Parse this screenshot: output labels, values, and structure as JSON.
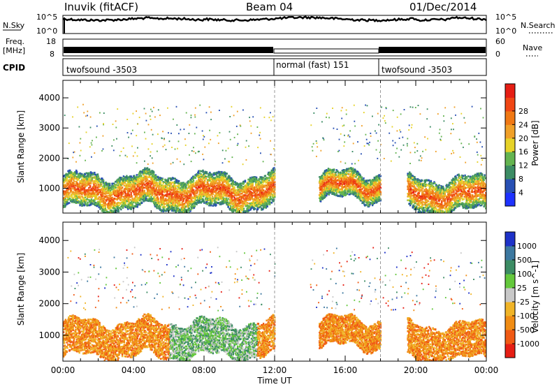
{
  "header": {
    "station": "Inuvik (fitACF)",
    "beam": "Beam 04",
    "date": "01/Dec/2014"
  },
  "status_panels": {
    "nsky_label": "N.Sky",
    "nsky_ticks": [
      "10^5",
      "10^0"
    ],
    "nsearch_label": "N.Search",
    "nsearch_ticks": [
      "10^5",
      "10^0"
    ],
    "freq_label_1": "Freq.",
    "freq_label_2": "[MHz]",
    "freq_ticks": [
      "18",
      "8"
    ],
    "nave_label": "Nave",
    "nave_ticks": [
      "60",
      "0"
    ],
    "cpid_label": "CPID",
    "cpid_segments": [
      {
        "name": "twofsound -3503",
        "start_hour": 0,
        "end_hour": 12
      },
      {
        "name": "normal (fast) 151",
        "start_hour": 12,
        "end_hour": 18
      },
      {
        "name": "twofsound -3503",
        "start_hour": 18,
        "end_hour": 24
      }
    ]
  },
  "chart_data": [
    {
      "type": "heatmap",
      "title": "",
      "xlabel": "Time UT",
      "ylabel": "Slant Range [km]",
      "xlim": [
        0,
        24
      ],
      "ylim": [
        180,
        4580
      ],
      "x_ticks": [
        "00:00",
        "04:00",
        "08:00",
        "12:00",
        "16:00",
        "20:00",
        "00:00"
      ],
      "y_ticks": [
        1000,
        2000,
        3000,
        4000
      ],
      "colorbar": {
        "label": "Power [dB]",
        "ticks": [
          "4",
          "8",
          "12",
          "16",
          "20",
          "24",
          "28"
        ],
        "colors": [
          "#1e32ff",
          "#2850b4",
          "#3c8c64",
          "#64b450",
          "#e6d228",
          "#f0a028",
          "#f07814",
          "#f04614",
          "#e61e14"
        ]
      },
      "scatter_band_ranges_km": [
        {
          "start_hour": 0,
          "end_hour": 12,
          "center_km": 900,
          "width_km": 500
        },
        {
          "start_hour": 14.5,
          "end_hour": 18,
          "center_km": 1100,
          "width_km": 400
        },
        {
          "start_hour": 19.5,
          "end_hour": 24,
          "center_km": 800,
          "width_km": 500
        }
      ]
    },
    {
      "type": "heatmap",
      "title": "",
      "xlabel": "Time UT",
      "ylabel": "Slant Range [km]",
      "xlim": [
        0,
        24
      ],
      "ylim": [
        180,
        4580
      ],
      "x_ticks": [
        "00:00",
        "04:00",
        "08:00",
        "12:00",
        "16:00",
        "20:00",
        "00:00"
      ],
      "y_ticks": [
        1000,
        2000,
        3000,
        4000
      ],
      "colorbar": {
        "label": "Velocity [m s^-1]",
        "ticks": [
          "1000",
          "500",
          "100",
          "25",
          "-25",
          "-100",
          "-500",
          "-1000"
        ],
        "colors": [
          "#1e32c8",
          "#3c78a0",
          "#3c8c64",
          "#64c83c",
          "#c8c8c8",
          "#f0b428",
          "#f08c14",
          "#f05a14",
          "#e61e14"
        ]
      }
    }
  ]
}
